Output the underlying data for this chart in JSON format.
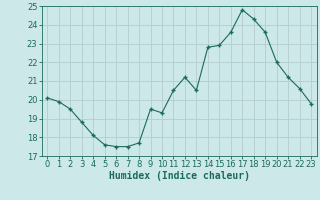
{
  "x": [
    0,
    1,
    2,
    3,
    4,
    5,
    6,
    7,
    8,
    9,
    10,
    11,
    12,
    13,
    14,
    15,
    16,
    17,
    18,
    19,
    20,
    21,
    22,
    23
  ],
  "y": [
    20.1,
    19.9,
    19.5,
    18.8,
    18.1,
    17.6,
    17.5,
    17.5,
    17.7,
    19.5,
    19.3,
    20.5,
    21.2,
    20.5,
    22.8,
    22.9,
    23.6,
    24.8,
    24.3,
    23.6,
    22.0,
    21.2,
    20.6,
    19.8
  ],
  "line_color": "#1a6b5a",
  "marker_color": "#1a6b5a",
  "bg_color": "#cde8e8",
  "grid_color": "#b4cccc",
  "xlabel": "Humidex (Indice chaleur)",
  "xlim": [
    -0.5,
    23.5
  ],
  "ylim": [
    17,
    25
  ],
  "yticks": [
    17,
    18,
    19,
    20,
    21,
    22,
    23,
    24,
    25
  ],
  "xticks": [
    0,
    1,
    2,
    3,
    4,
    5,
    6,
    7,
    8,
    9,
    10,
    11,
    12,
    13,
    14,
    15,
    16,
    17,
    18,
    19,
    20,
    21,
    22,
    23
  ],
  "tick_fontsize": 6,
  "label_fontsize": 7
}
